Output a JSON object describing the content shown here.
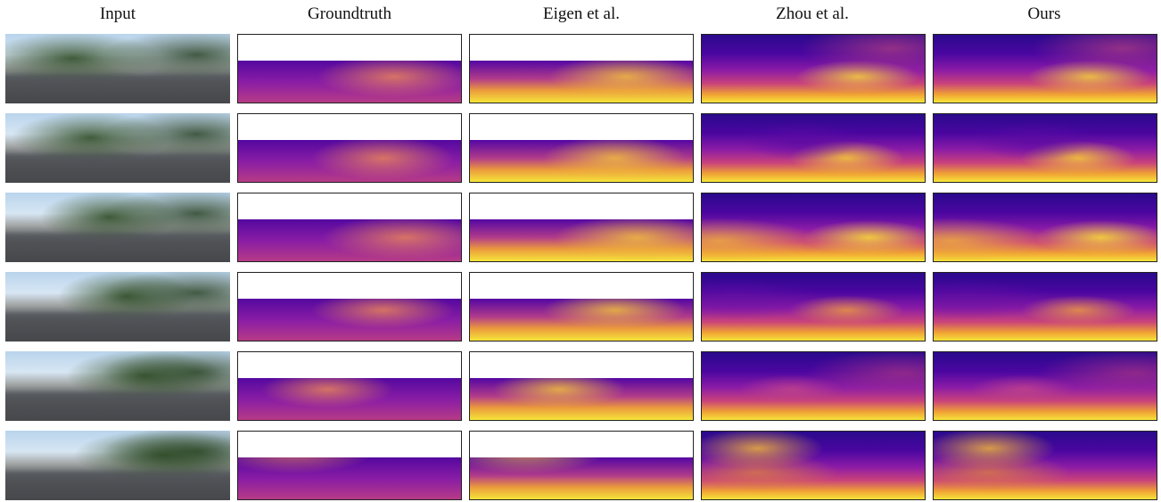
{
  "headers": {
    "input": "Input",
    "groundtruth": "Groundtruth",
    "eigen": "Eigen et al.",
    "zhou": "Zhou et al.",
    "ours": "Ours"
  },
  "colors": {
    "depth_far": "#2a0a8c",
    "depth_mid": "#8b1ba6",
    "depth_near": "#f5e53a",
    "frame": "#222222"
  },
  "rows": [
    {
      "index": 1
    },
    {
      "index": 2
    },
    {
      "index": 3
    },
    {
      "index": 4
    },
    {
      "index": 5
    },
    {
      "index": 6
    }
  ]
}
